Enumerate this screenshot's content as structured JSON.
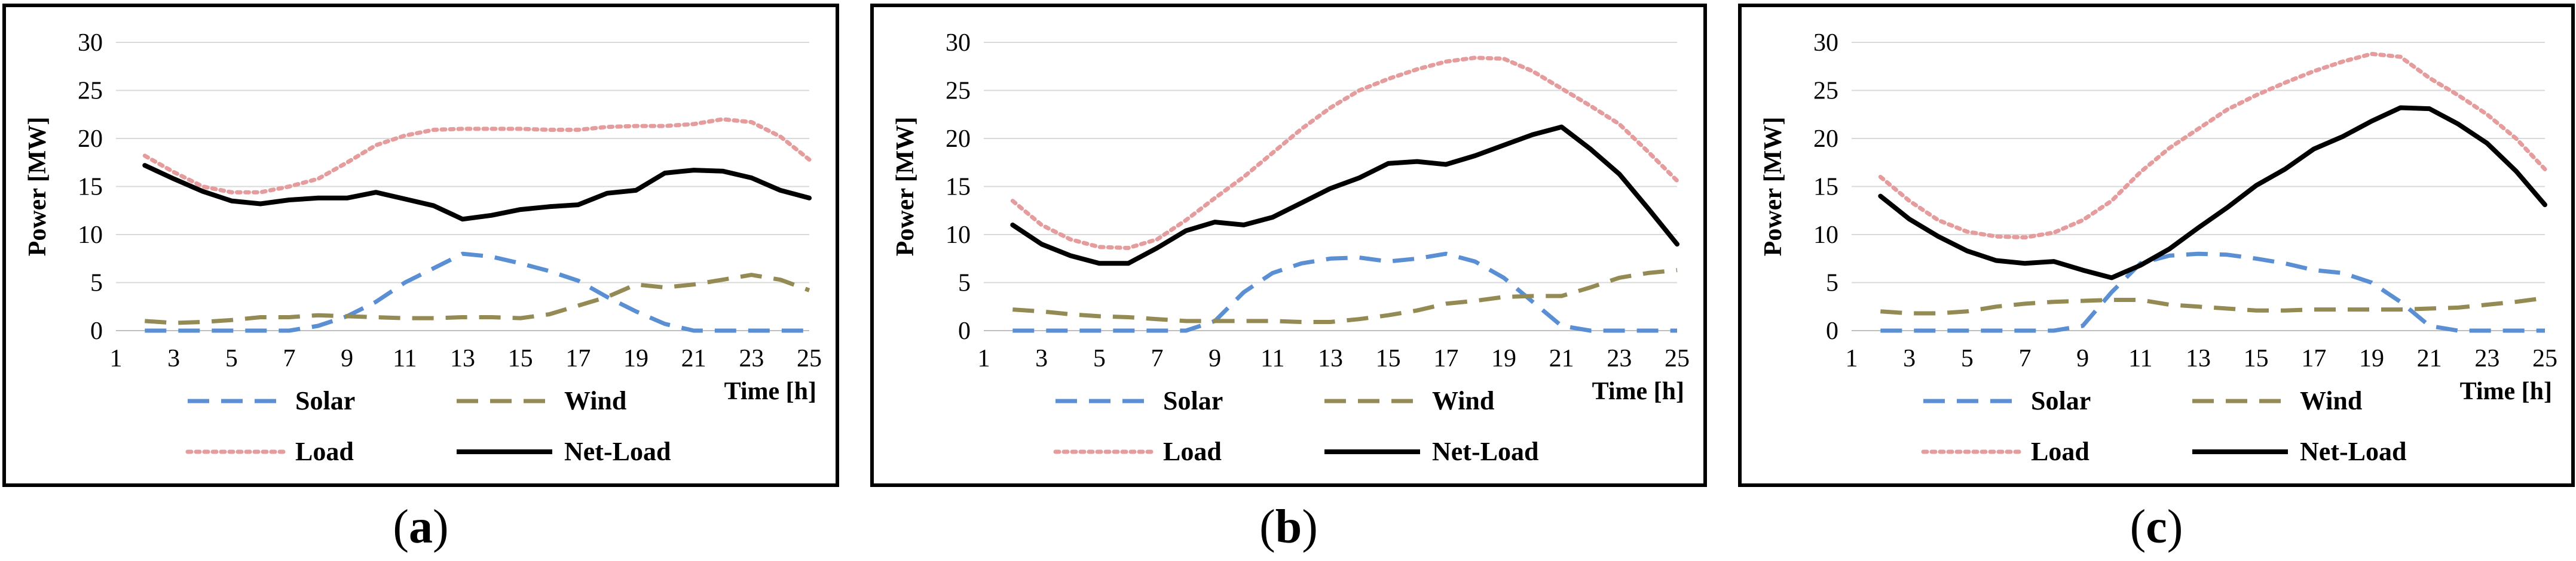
{
  "colors": {
    "solar": "#5b8fd4",
    "wind": "#948a54",
    "load": "#e59c9c",
    "net_load": "#000000",
    "frame": "#000000",
    "grid": "#d9d9d9"
  },
  "captions": [
    {
      "open": "(",
      "letter": "a",
      "close": ")"
    },
    {
      "open": "(",
      "letter": "b",
      "close": ")"
    },
    {
      "open": "(",
      "letter": "c",
      "close": ")"
    }
  ],
  "chart_data": [
    {
      "type": "line",
      "xlabel": "Time [h]",
      "ylabel": "Power [MW]",
      "xlim": [
        1,
        25
      ],
      "ylim": [
        0,
        30
      ],
      "x_ticks": [
        1,
        3,
        5,
        7,
        9,
        11,
        13,
        15,
        17,
        19,
        21,
        23,
        25
      ],
      "y_ticks": [
        0,
        5,
        10,
        15,
        20,
        25,
        30
      ],
      "grid": "horizontal",
      "legend": "bottom",
      "x": [
        2,
        3,
        4,
        5,
        6,
        7,
        8,
        9,
        10,
        11,
        12,
        13,
        14,
        15,
        16,
        17,
        18,
        19,
        20,
        21,
        22,
        23,
        24,
        25
      ],
      "series": [
        {
          "name": "Solar",
          "style": "dash",
          "values": [
            0,
            0,
            0,
            0,
            0,
            0,
            0.5,
            1.5,
            3,
            5,
            6.5,
            8,
            7.7,
            7,
            6.2,
            5.2,
            3.5,
            2,
            0.7,
            0,
            0,
            0,
            0,
            0
          ]
        },
        {
          "name": "Wind",
          "style": "dash",
          "values": [
            1,
            0.8,
            0.9,
            1.1,
            1.4,
            1.4,
            1.6,
            1.5,
            1.4,
            1.3,
            1.3,
            1.4,
            1.4,
            1.3,
            1.7,
            2.6,
            3.5,
            4.8,
            4.5,
            4.8,
            5.3,
            5.8,
            5.3,
            4.2
          ]
        },
        {
          "name": "Load",
          "style": "dot",
          "values": [
            18.2,
            16.5,
            15,
            14.4,
            14.4,
            15,
            15.8,
            17.5,
            19.3,
            20.3,
            20.9,
            21,
            21,
            21,
            20.9,
            20.9,
            21.2,
            21.3,
            21.3,
            21.5,
            22,
            21.7,
            20.2,
            17.8
          ]
        },
        {
          "name": "Net-Load",
          "style": "solid",
          "values": [
            17.2,
            15.8,
            14.5,
            13.5,
            13.2,
            13.6,
            13.8,
            13.8,
            14.4,
            13.7,
            13,
            11.6,
            12,
            12.6,
            12.9,
            13.1,
            14.3,
            14.6,
            16.4,
            16.7,
            16.6,
            15.9,
            14.6,
            13.8
          ]
        }
      ]
    },
    {
      "type": "line",
      "xlabel": "Time [h]",
      "ylabel": "Power [MW]",
      "xlim": [
        1,
        25
      ],
      "ylim": [
        0,
        30
      ],
      "x_ticks": [
        1,
        3,
        5,
        7,
        9,
        11,
        13,
        15,
        17,
        19,
        21,
        23,
        25
      ],
      "y_ticks": [
        0,
        5,
        10,
        15,
        20,
        25,
        30
      ],
      "grid": "horizontal",
      "legend": "bottom",
      "x": [
        2,
        3,
        4,
        5,
        6,
        7,
        8,
        9,
        10,
        11,
        12,
        13,
        14,
        15,
        16,
        17,
        18,
        19,
        20,
        21,
        22,
        23,
        24,
        25
      ],
      "series": [
        {
          "name": "Solar",
          "style": "dash",
          "values": [
            0,
            0,
            0,
            0,
            0,
            0,
            0,
            1,
            4,
            6,
            7,
            7.5,
            7.6,
            7.2,
            7.5,
            8,
            7.2,
            5.5,
            3,
            0.5,
            0,
            0,
            0,
            0
          ]
        },
        {
          "name": "Wind",
          "style": "dash",
          "values": [
            2.2,
            2,
            1.7,
            1.5,
            1.4,
            1.2,
            1,
            1,
            1,
            1,
            0.9,
            0.9,
            1.2,
            1.6,
            2.1,
            2.8,
            3.1,
            3.5,
            3.6,
            3.6,
            4.5,
            5.5,
            6,
            6.3
          ]
        },
        {
          "name": "Load",
          "style": "dot",
          "values": [
            13.5,
            11,
            9.5,
            8.7,
            8.6,
            9.5,
            11.5,
            13.8,
            16,
            18.5,
            21,
            23.2,
            25,
            26.2,
            27.2,
            28,
            28.4,
            28.3,
            27,
            25.2,
            23.4,
            21.5,
            18.6,
            15.6
          ]
        },
        {
          "name": "Net-Load",
          "style": "solid",
          "values": [
            11,
            9,
            7.8,
            7,
            7,
            8.6,
            10.4,
            11.3,
            11,
            11.8,
            13.3,
            14.8,
            15.9,
            17.4,
            17.6,
            17.3,
            18.2,
            19.3,
            20.4,
            21.2,
            18.9,
            16.3,
            12.7,
            9
          ]
        }
      ]
    },
    {
      "type": "line",
      "xlabel": "Time [h]",
      "ylabel": "Power [MW]",
      "xlim": [
        1,
        25
      ],
      "ylim": [
        0,
        30
      ],
      "x_ticks": [
        1,
        3,
        5,
        7,
        9,
        11,
        13,
        15,
        17,
        19,
        21,
        23,
        25
      ],
      "y_ticks": [
        0,
        5,
        10,
        15,
        20,
        25,
        30
      ],
      "grid": "horizontal",
      "legend": "bottom",
      "x": [
        2,
        3,
        4,
        5,
        6,
        7,
        8,
        9,
        10,
        11,
        12,
        13,
        14,
        15,
        16,
        17,
        18,
        19,
        20,
        21,
        22,
        23,
        24,
        25
      ],
      "series": [
        {
          "name": "Solar",
          "style": "dash",
          "values": [
            0,
            0,
            0,
            0,
            0,
            0,
            0,
            0.5,
            4,
            7,
            7.8,
            8,
            7.9,
            7.5,
            7,
            6.3,
            6,
            5,
            3,
            0.5,
            0,
            0,
            0,
            0
          ]
        },
        {
          "name": "Wind",
          "style": "dash",
          "values": [
            2,
            1.8,
            1.8,
            2,
            2.5,
            2.8,
            3,
            3.1,
            3.2,
            3.2,
            2.7,
            2.5,
            2.3,
            2.1,
            2.1,
            2.2,
            2.2,
            2.2,
            2.2,
            2.3,
            2.4,
            2.7,
            3,
            3.4
          ]
        },
        {
          "name": "Load",
          "style": "dot",
          "values": [
            16,
            13.5,
            11.5,
            10.3,
            9.8,
            9.7,
            10.2,
            11.5,
            13.5,
            16.5,
            19,
            21,
            23,
            24.5,
            25.8,
            27,
            28,
            28.8,
            28.5,
            26.3,
            24.5,
            22.5,
            20,
            16.8
          ]
        },
        {
          "name": "Net-Load",
          "style": "solid",
          "values": [
            14,
            11.6,
            9.8,
            8.3,
            7.3,
            7,
            7.2,
            6.3,
            5.5,
            6.8,
            8.5,
            10.7,
            12.8,
            15.1,
            16.8,
            18.9,
            20.2,
            21.8,
            23.2,
            23.1,
            21.5,
            19.5,
            16.6,
            13.1
          ]
        }
      ]
    }
  ]
}
